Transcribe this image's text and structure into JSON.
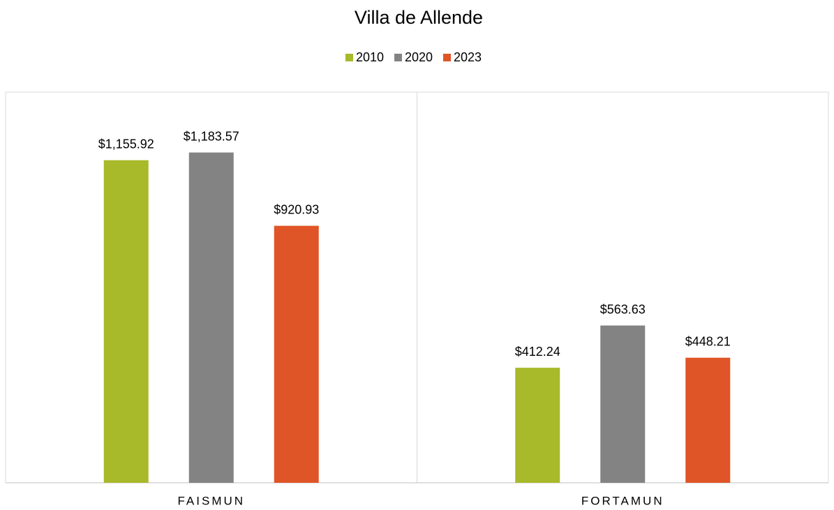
{
  "chart_data": {
    "type": "bar",
    "title": "Villa de Allende",
    "categories": [
      "FAISMUN",
      "FORTAMUN"
    ],
    "series": [
      {
        "name": "2010",
        "color": "#a8b92a",
        "values": [
          1155.92,
          412.24
        ],
        "value_labels": [
          "$1,155.92",
          "$412.24"
        ]
      },
      {
        "name": "2020",
        "color": "#838383",
        "values": [
          1183.57,
          563.63
        ],
        "value_labels": [
          "$1,183.57",
          "$563.63"
        ]
      },
      {
        "name": "2023",
        "color": "#e05527",
        "values": [
          920.93,
          448.21
        ],
        "value_labels": [
          "$920.93",
          "$448.21"
        ]
      }
    ],
    "ylim": [
      0,
      1400
    ],
    "legend": "top"
  }
}
